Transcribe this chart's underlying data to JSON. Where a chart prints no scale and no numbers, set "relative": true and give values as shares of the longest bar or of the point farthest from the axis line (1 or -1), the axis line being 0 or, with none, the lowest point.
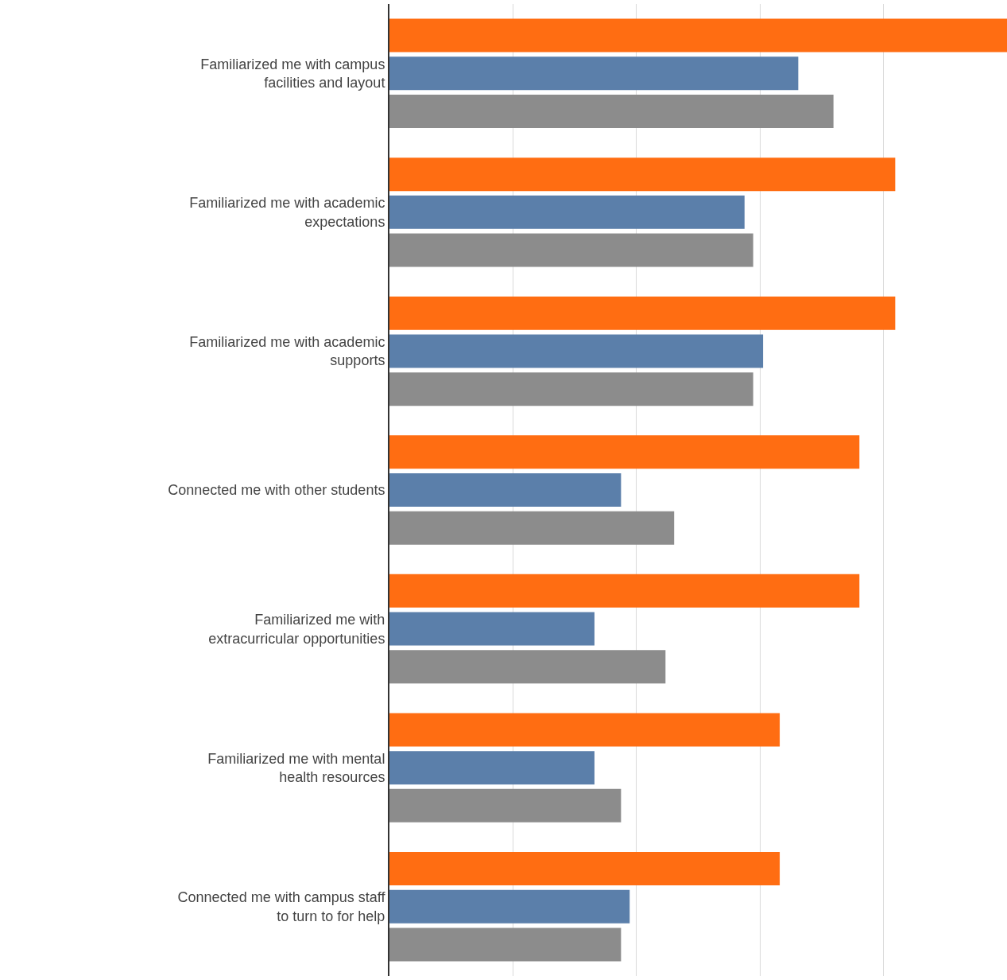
{
  "chart_data": {
    "type": "bar",
    "orientation": "horizontal",
    "relative": true,
    "grid": "x",
    "categories": [
      "Familiarized me with campus\nfacilities and layout",
      "Familiarized me with academic\nexpectations",
      "Familiarized me with academic\nsupports",
      "Connected me with other students",
      "Familiarized me with\nextracurricular opportunities",
      "Familiarized me with mental\nhealth resources",
      "Connected me with campus staff\nto turn to for help"
    ],
    "series": [
      {
        "color": "#ff6d12",
        "values": [
          1,
          0.819,
          0.819,
          0.761,
          0.761,
          0.632,
          0.632
        ]
      },
      {
        "color": "#5b7faa",
        "values": [
          0.662,
          0.575,
          0.605,
          0.375,
          0.332,
          0.332,
          0.389
        ]
      },
      {
        "color": "#8c8c8c",
        "values": [
          0.719,
          0.589,
          0.589,
          0.461,
          0.447,
          0.375,
          0.375
        ]
      }
    ]
  }
}
